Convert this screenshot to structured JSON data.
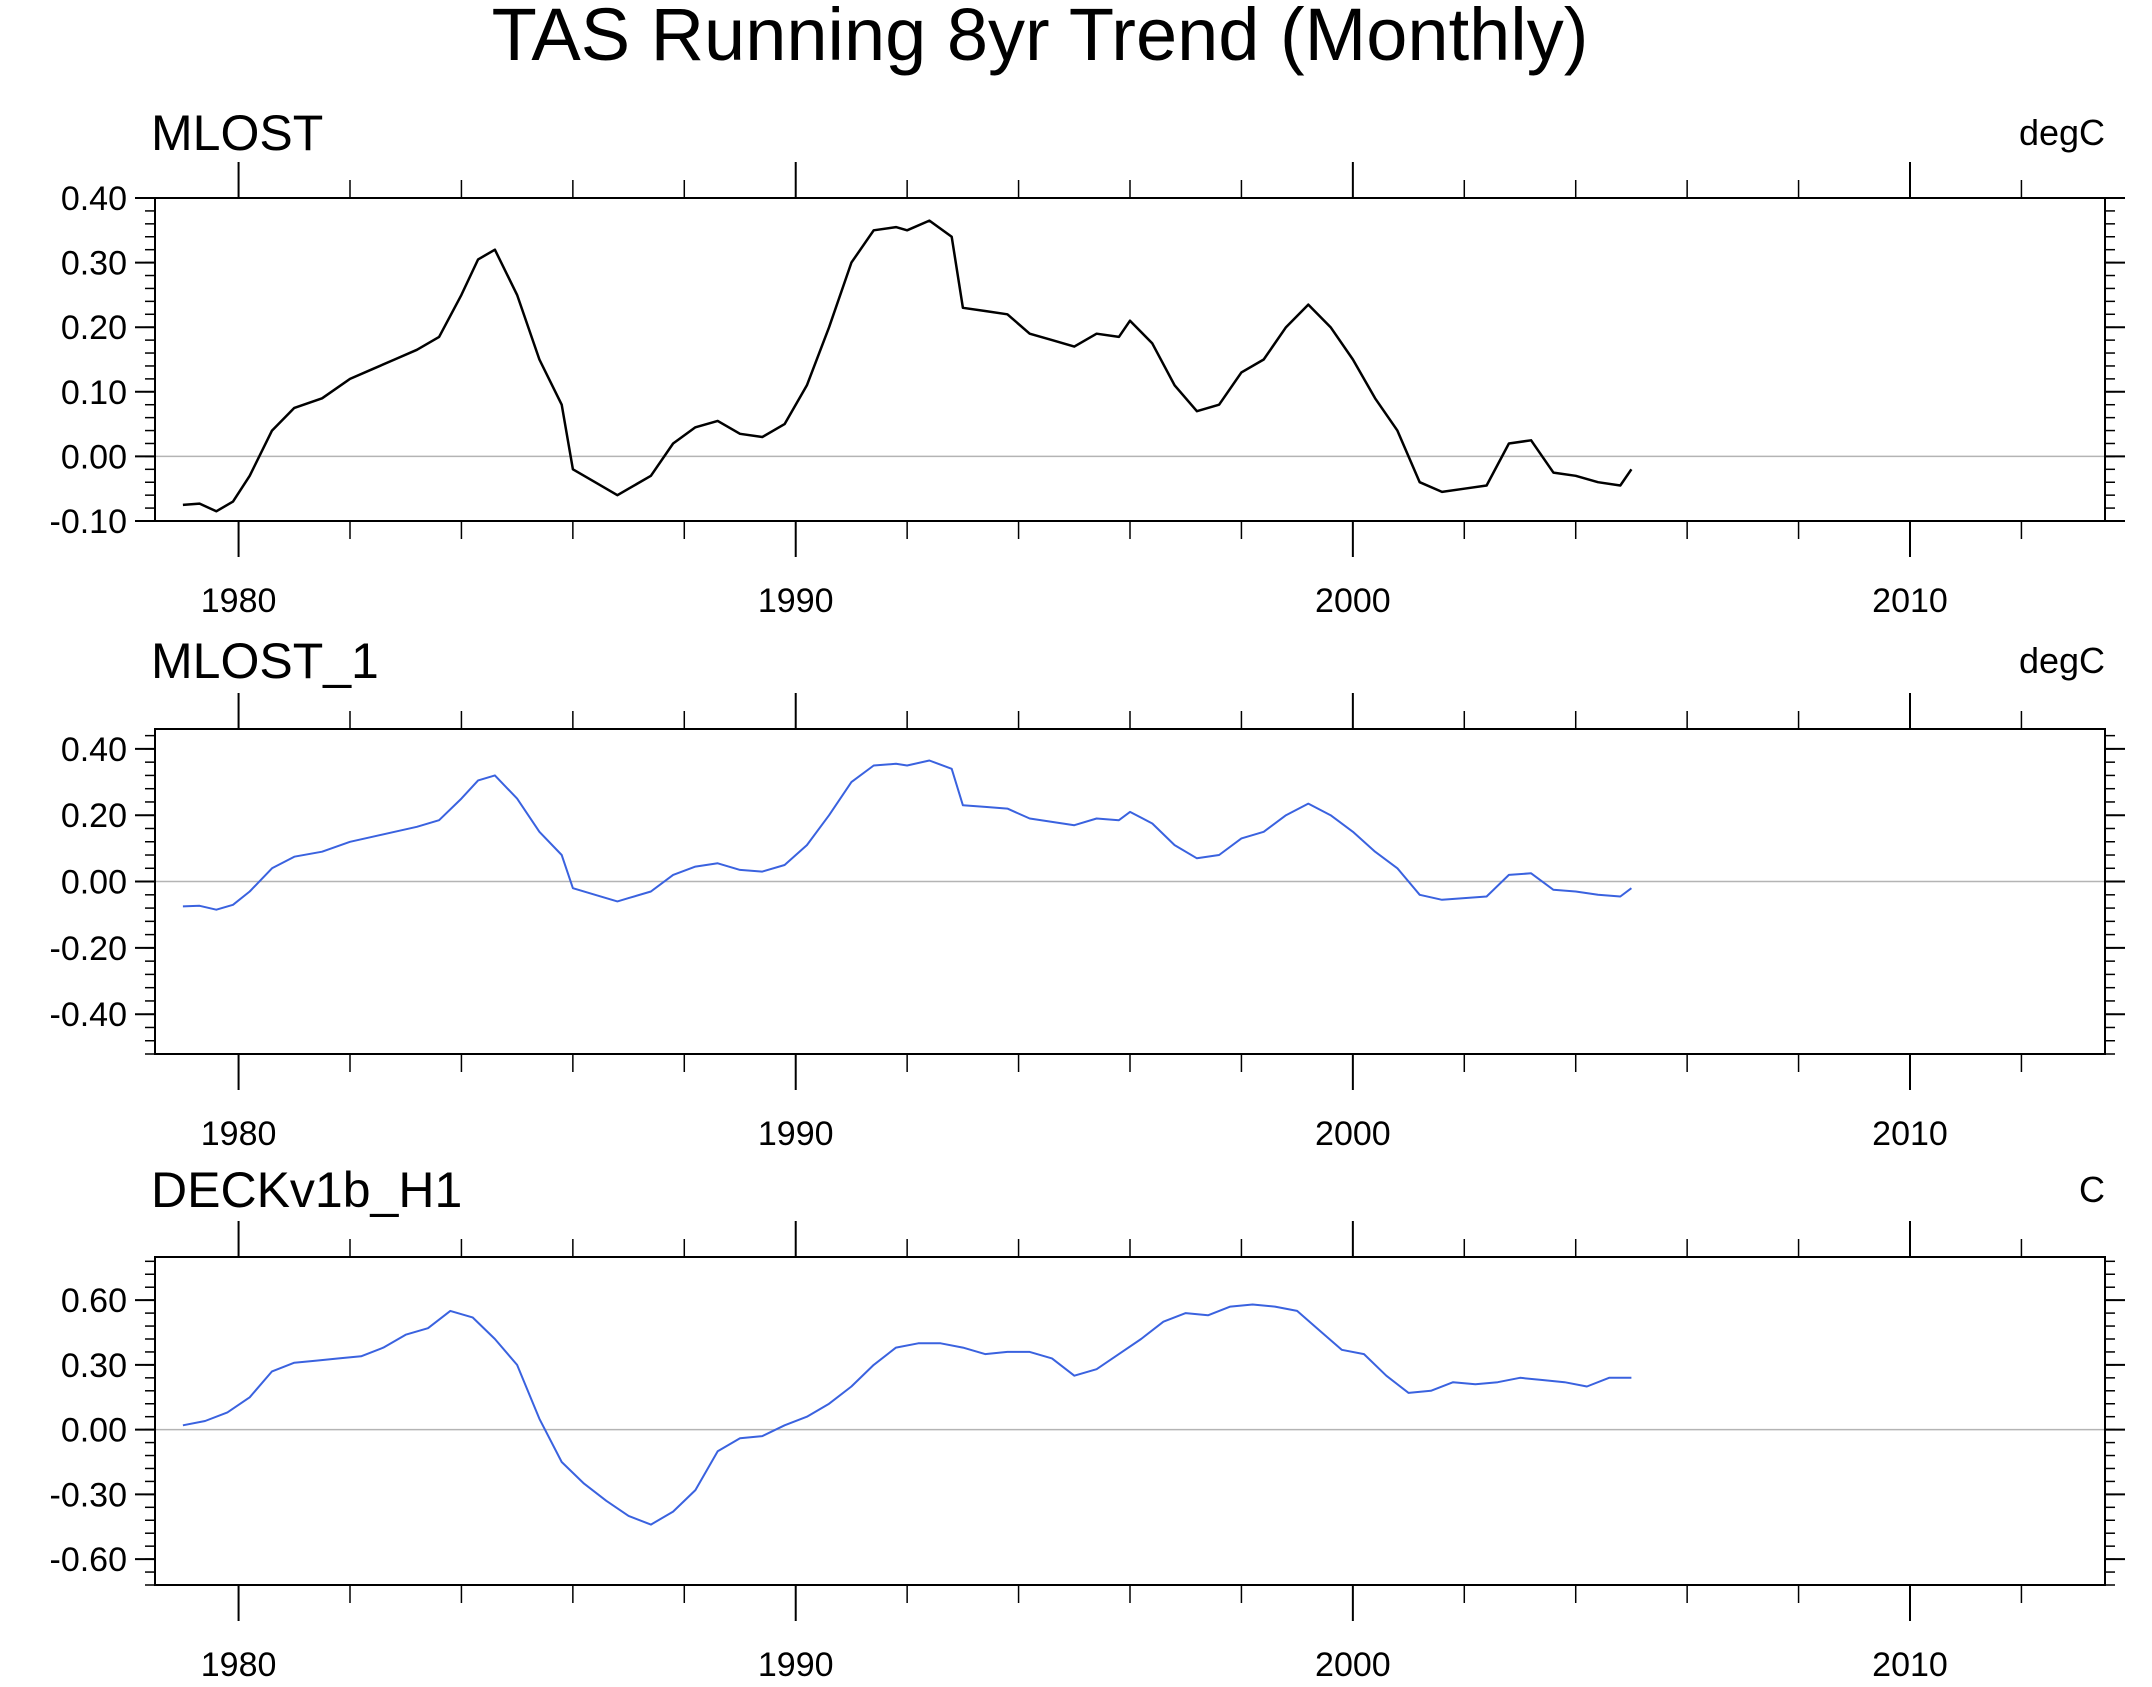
{
  "title": "TAS Running 8yr Trend (Monthly)",
  "chart_data": [
    {
      "type": "line",
      "title": "MLOST",
      "units": "degC",
      "color": "#000000",
      "xlim": [
        1978.5,
        2013.5
      ],
      "ylim": [
        -0.1,
        0.4
      ],
      "yticks": [
        -0.1,
        0.0,
        0.1,
        0.2,
        0.3,
        0.4
      ],
      "ytick_labels": [
        "-0.10",
        "0.00",
        "0.10",
        "0.20",
        "0.30",
        "0.40"
      ],
      "xticks": [
        1980,
        1990,
        2000,
        2010
      ],
      "xtick_labels": [
        "1980",
        "1990",
        "2000",
        "2010"
      ],
      "zero_line": true,
      "series": [
        {
          "x": [
            1979.0,
            1979.3,
            1979.6,
            1979.9,
            1980.2,
            1980.6,
            1981.0,
            1981.5,
            1982.0,
            1982.4,
            1982.8,
            1983.2,
            1983.6,
            1984.0,
            1984.3,
            1984.6,
            1985.0,
            1985.4,
            1985.8,
            1986.0,
            1986.4,
            1986.8,
            1987.0,
            1987.4,
            1987.8,
            1988.2,
            1988.6,
            1989.0,
            1989.4,
            1989.8,
            1990.2,
            1990.6,
            1991.0,
            1991.4,
            1991.8,
            1992.0,
            1992.4,
            1992.8,
            1993.0,
            1993.4,
            1993.8,
            1994.2,
            1994.6,
            1995.0,
            1995.4,
            1995.8,
            1996.0,
            1996.4,
            1996.8,
            1997.2,
            1997.6,
            1998.0,
            1998.4,
            1998.8,
            1999.2,
            1999.6,
            2000.0,
            2000.4,
            2000.8,
            2001.2,
            2001.6,
            2002.0,
            2002.4,
            2002.8,
            2003.2,
            2003.6,
            2004.0,
            2004.4,
            2004.8,
            2005.0
          ],
          "y": [
            -0.075,
            -0.073,
            -0.085,
            -0.07,
            -0.03,
            0.04,
            0.075,
            0.09,
            0.12,
            0.135,
            0.15,
            0.165,
            0.185,
            0.25,
            0.305,
            0.32,
            0.25,
            0.15,
            0.08,
            -0.02,
            -0.04,
            -0.06,
            -0.05,
            -0.03,
            0.02,
            0.045,
            0.055,
            0.035,
            0.03,
            0.05,
            0.11,
            0.2,
            0.3,
            0.35,
            0.355,
            0.35,
            0.365,
            0.34,
            0.23,
            0.225,
            0.22,
            0.19,
            0.18,
            0.17,
            0.19,
            0.185,
            0.21,
            0.175,
            0.11,
            0.07,
            0.08,
            0.13,
            0.15,
            0.2,
            0.235,
            0.2,
            0.15,
            0.09,
            0.04,
            -0.04,
            -0.055,
            -0.05,
            -0.045,
            0.02,
            0.025,
            -0.025,
            -0.03,
            -0.04,
            -0.045,
            -0.02
          ]
        }
      ]
    },
    {
      "type": "line",
      "title": "MLOST_1",
      "units": "degC",
      "color": "#3a62df",
      "xlim": [
        1978.5,
        2013.5
      ],
      "ylim": [
        -0.52,
        0.46
      ],
      "yticks": [
        -0.4,
        -0.2,
        0.0,
        0.2,
        0.4
      ],
      "ytick_labels": [
        "-0.40",
        "-0.20",
        "0.00",
        "0.20",
        "0.40"
      ],
      "xticks": [
        1980,
        1990,
        2000,
        2010
      ],
      "xtick_labels": [
        "1980",
        "1990",
        "2000",
        "2010"
      ],
      "zero_line": true,
      "series": [
        {
          "x": [
            1979.0,
            1979.3,
            1979.6,
            1979.9,
            1980.2,
            1980.6,
            1981.0,
            1981.5,
            1982.0,
            1982.4,
            1982.8,
            1983.2,
            1983.6,
            1984.0,
            1984.3,
            1984.6,
            1985.0,
            1985.4,
            1985.8,
            1986.0,
            1986.4,
            1986.8,
            1987.0,
            1987.4,
            1987.8,
            1988.2,
            1988.6,
            1989.0,
            1989.4,
            1989.8,
            1990.2,
            1990.6,
            1991.0,
            1991.4,
            1991.8,
            1992.0,
            1992.4,
            1992.8,
            1993.0,
            1993.4,
            1993.8,
            1994.2,
            1994.6,
            1995.0,
            1995.4,
            1995.8,
            1996.0,
            1996.4,
            1996.8,
            1997.2,
            1997.6,
            1998.0,
            1998.4,
            1998.8,
            1999.2,
            1999.6,
            2000.0,
            2000.4,
            2000.8,
            2001.2,
            2001.6,
            2002.0,
            2002.4,
            2002.8,
            2003.2,
            2003.6,
            2004.0,
            2004.4,
            2004.8,
            2005.0
          ],
          "y": [
            -0.075,
            -0.073,
            -0.085,
            -0.07,
            -0.03,
            0.04,
            0.075,
            0.09,
            0.12,
            0.135,
            0.15,
            0.165,
            0.185,
            0.25,
            0.305,
            0.32,
            0.25,
            0.15,
            0.08,
            -0.02,
            -0.04,
            -0.06,
            -0.05,
            -0.03,
            0.02,
            0.045,
            0.055,
            0.035,
            0.03,
            0.05,
            0.11,
            0.2,
            0.3,
            0.35,
            0.355,
            0.35,
            0.365,
            0.34,
            0.23,
            0.225,
            0.22,
            0.19,
            0.18,
            0.17,
            0.19,
            0.185,
            0.21,
            0.175,
            0.11,
            0.07,
            0.08,
            0.13,
            0.15,
            0.2,
            0.235,
            0.2,
            0.15,
            0.09,
            0.04,
            -0.04,
            -0.055,
            -0.05,
            -0.045,
            0.02,
            0.025,
            -0.025,
            -0.03,
            -0.04,
            -0.045,
            -0.02
          ]
        }
      ]
    },
    {
      "type": "line",
      "title": "DECKv1b_H1",
      "units": "C",
      "color": "#3a62df",
      "xlim": [
        1978.5,
        2013.5
      ],
      "ylim": [
        -0.72,
        0.8
      ],
      "yticks": [
        -0.6,
        -0.3,
        0.0,
        0.3,
        0.6
      ],
      "ytick_labels": [
        "-0.60",
        "-0.30",
        "0.00",
        "0.30",
        "0.60"
      ],
      "xticks": [
        1980,
        1990,
        2000,
        2010
      ],
      "xtick_labels": [
        "1980",
        "1990",
        "2000",
        "2010"
      ],
      "zero_line": true,
      "series": [
        {
          "x": [
            1979.0,
            1979.4,
            1979.8,
            1980.2,
            1980.6,
            1981.0,
            1981.4,
            1981.8,
            1982.2,
            1982.6,
            1983.0,
            1983.4,
            1983.8,
            1984.2,
            1984.6,
            1985.0,
            1985.4,
            1985.8,
            1986.2,
            1986.6,
            1987.0,
            1987.4,
            1987.8,
            1988.2,
            1988.6,
            1989.0,
            1989.4,
            1989.8,
            1990.2,
            1990.6,
            1991.0,
            1991.4,
            1991.8,
            1992.2,
            1992.6,
            1993.0,
            1993.4,
            1993.8,
            1994.2,
            1994.6,
            1995.0,
            1995.4,
            1995.8,
            1996.2,
            1996.6,
            1997.0,
            1997.4,
            1997.8,
            1998.2,
            1998.6,
            1999.0,
            1999.4,
            1999.8,
            2000.2,
            2000.6,
            2001.0,
            2001.4,
            2001.8,
            2002.2,
            2002.6,
            2003.0,
            2003.4,
            2003.8,
            2004.2,
            2004.6,
            2005.0
          ],
          "y": [
            0.02,
            0.04,
            0.08,
            0.15,
            0.27,
            0.31,
            0.32,
            0.33,
            0.34,
            0.38,
            0.44,
            0.47,
            0.55,
            0.52,
            0.42,
            0.3,
            0.05,
            -0.15,
            -0.25,
            -0.33,
            -0.4,
            -0.44,
            -0.38,
            -0.28,
            -0.1,
            -0.04,
            -0.03,
            0.02,
            0.06,
            0.12,
            0.2,
            0.3,
            0.38,
            0.4,
            0.4,
            0.38,
            0.35,
            0.36,
            0.36,
            0.33,
            0.25,
            0.28,
            0.35,
            0.42,
            0.5,
            0.54,
            0.53,
            0.57,
            0.58,
            0.57,
            0.55,
            0.46,
            0.37,
            0.35,
            0.25,
            0.17,
            0.18,
            0.22,
            0.21,
            0.22,
            0.24,
            0.23,
            0.22,
            0.2,
            0.24,
            0.24
          ]
        }
      ]
    }
  ]
}
